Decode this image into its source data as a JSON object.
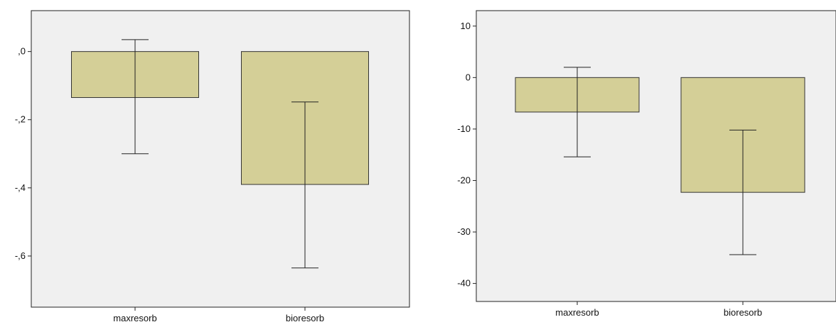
{
  "chart_data": [
    {
      "type": "bar",
      "categories": [
        "maxresorb",
        "bioresorb"
      ],
      "values": [
        -0.135,
        -0.39
      ],
      "error_bars": [
        {
          "low": -0.3,
          "high": 0.035
        },
        {
          "low": -0.635,
          "high": -0.148
        }
      ],
      "y_ticks": [
        0.0,
        -0.2,
        -0.4,
        -0.6
      ],
      "y_tick_labels": [
        ",0",
        "-,2",
        "-,4",
        "-,6"
      ],
      "ylim": [
        -0.75,
        0.12
      ],
      "grid": false,
      "title": "",
      "xlabel": "",
      "ylabel": "",
      "bar_color": "#d4cf97",
      "plot_background": "#f0f0f0"
    },
    {
      "type": "bar",
      "categories": [
        "maxresorb",
        "bioresorb"
      ],
      "values": [
        -6.7,
        -22.3
      ],
      "error_bars": [
        {
          "low": -15.4,
          "high": 2.0
        },
        {
          "low": -34.4,
          "high": -10.2
        }
      ],
      "y_ticks": [
        10,
        0,
        -10,
        -20,
        -30,
        -40
      ],
      "y_tick_labels": [
        "10",
        "0",
        "-10",
        "-20",
        "-30",
        "-40"
      ],
      "ylim": [
        -43.5,
        13
      ],
      "grid": false,
      "title": "",
      "xlabel": "",
      "ylabel": "",
      "bar_color": "#d4cf97",
      "plot_background": "#f0f0f0"
    }
  ]
}
